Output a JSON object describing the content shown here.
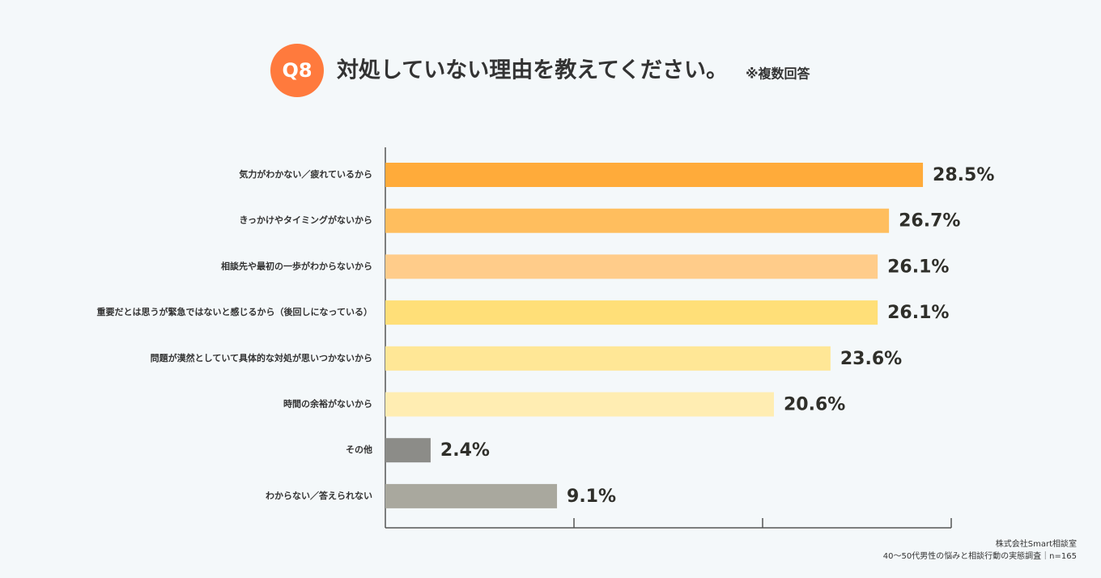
{
  "chart_data": {
    "type": "barh",
    "badge": "Q8",
    "title": "対処していない理由を教えてください。",
    "subtitle": "※複数回答",
    "categories": [
      "気力がわかない／疲れているから",
      "きっかけやタイミングがないから",
      "相談先や最初の一歩がわからないから",
      "重要だとは思うが緊急ではないと感じるから（後回しになっている）",
      "問題が漠然としていて具体的な対処が思いつかないから",
      "時間の余裕がないから",
      "その他",
      "わからない／答えられない"
    ],
    "values": [
      28.5,
      26.7,
      26.1,
      26.1,
      23.6,
      20.6,
      2.4,
      9.1
    ],
    "value_labels": [
      "28.5%",
      "26.7%",
      "26.1%",
      "26.1%",
      "23.6%",
      "20.6%",
      "2.4%",
      "9.1%"
    ],
    "colors": [
      "#ffab3a",
      "#ffbe5e",
      "#ffcc8a",
      "#ffdf78",
      "#ffe796",
      "#ffedb2",
      "#8c8c88",
      "#a9a89e"
    ],
    "xlim": [
      0,
      30
    ],
    "xticks": [
      10,
      20,
      30
    ],
    "source": [
      "株式会社Smart相談室",
      "40～50代男性の悩みと相談行動の実態調査｜n=165"
    ]
  }
}
